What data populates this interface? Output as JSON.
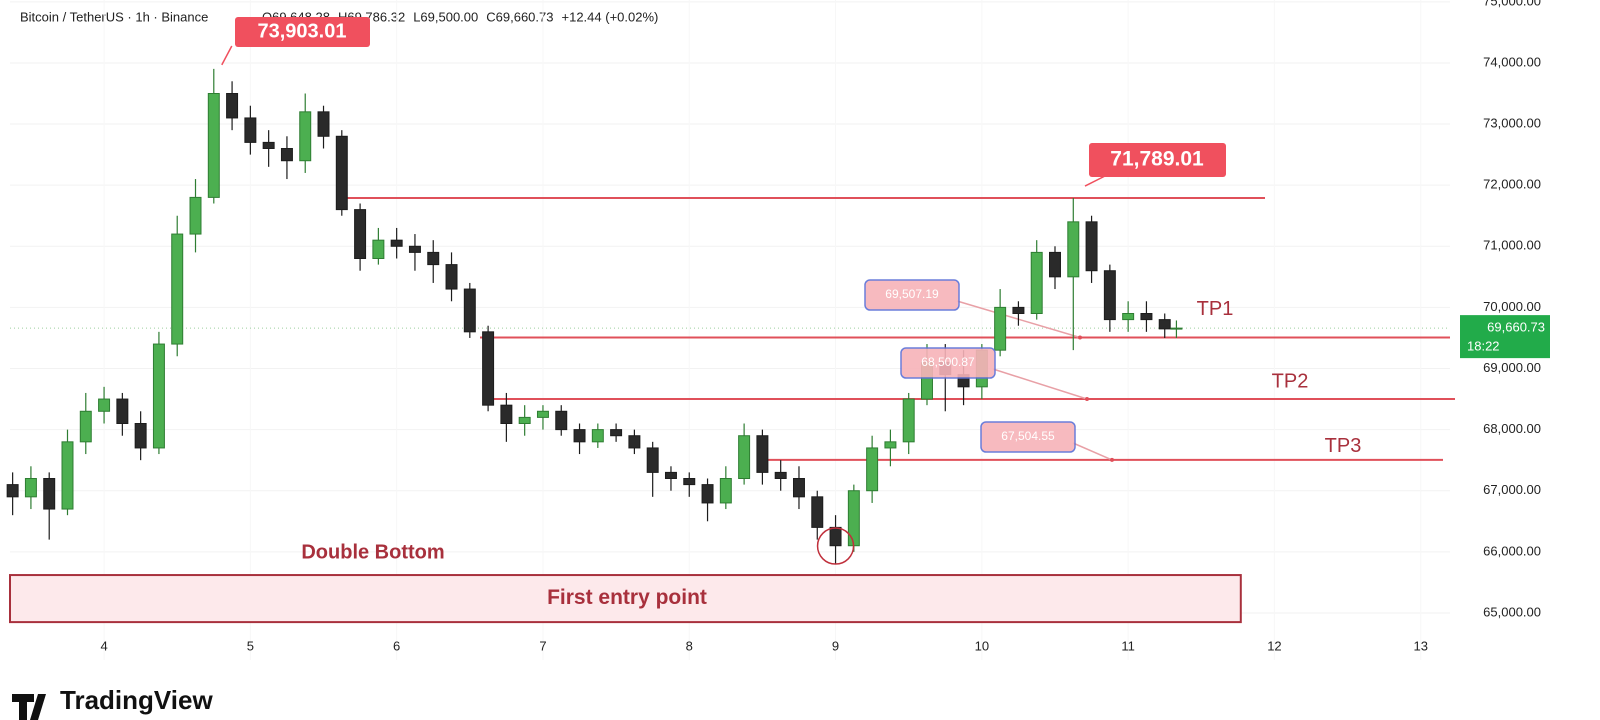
{
  "chart_data": {
    "type": "candlestick",
    "header": {
      "symbol": "Bitcoin / TetherUS · 1h · Binance",
      "ohlc": [
        "O69,648.28",
        "H69,786.32",
        "L69,500.00",
        "C69,660.73",
        "+12.44 (+0.02%)"
      ]
    },
    "x": [
      3.375,
      3.5,
      3.625,
      3.75,
      3.875,
      4.0,
      4.125,
      4.25,
      4.375,
      4.5,
      4.625,
      4.75,
      4.875,
      5.0,
      5.125,
      5.25,
      5.375,
      5.5,
      5.625,
      5.75,
      5.875,
      6.0,
      6.125,
      6.25,
      6.375,
      6.5,
      6.625,
      6.75,
      6.875,
      7.0,
      7.125,
      7.25,
      7.375,
      7.5,
      7.625,
      7.75,
      7.875,
      8.0,
      8.125,
      8.25,
      8.375,
      8.5,
      8.625,
      8.75,
      8.875,
      9.0,
      9.125,
      9.25,
      9.375,
      9.5,
      9.625,
      9.75,
      9.875,
      10.0,
      10.125,
      10.25,
      10.375,
      10.5,
      10.625,
      10.75,
      10.875,
      11.0,
      11.125,
      11.25,
      11.33
    ],
    "open": [
      67100,
      66900,
      67200,
      66700,
      67800,
      68300,
      68500,
      68100,
      67700,
      69400,
      71200,
      71800,
      73500,
      73100,
      72700,
      72600,
      72400,
      73200,
      72800,
      71600,
      70800,
      71100,
      71000,
      70900,
      70700,
      70300,
      69600,
      68400,
      68100,
      68200,
      68300,
      68000,
      67800,
      68000,
      67900,
      67700,
      67300,
      67200,
      67100,
      66800,
      67200,
      67900,
      67300,
      67200,
      66900,
      66400,
      66100,
      67000,
      67700,
      67800,
      68500,
      69100,
      68900,
      68700,
      69300,
      70000,
      69900,
      70900,
      70500,
      71400,
      70600,
      69800,
      69900,
      69800,
      69648.28
    ],
    "high": [
      67300,
      67400,
      67300,
      68000,
      68600,
      68700,
      68600,
      68300,
      69600,
      71500,
      72100,
      73903.01,
      73700,
      73300,
      72900,
      72800,
      73500,
      73300,
      72900,
      71700,
      71300,
      71300,
      71200,
      71100,
      70900,
      70400,
      69700,
      68600,
      68400,
      68400,
      68400,
      68100,
      68100,
      68100,
      68000,
      67800,
      67400,
      67300,
      67200,
      67400,
      68100,
      68000,
      67500,
      67400,
      67000,
      66600,
      67100,
      67900,
      68000,
      68600,
      69400,
      69400,
      69300,
      69400,
      70300,
      70100,
      71100,
      71000,
      71789.01,
      71500,
      70700,
      70100,
      70100,
      69900,
      69786.32
    ],
    "low": [
      66600,
      66700,
      66200,
      66600,
      67600,
      68100,
      67900,
      67500,
      67600,
      69200,
      70900,
      71700,
      72900,
      72500,
      72300,
      72100,
      72200,
      72600,
      71500,
      70600,
      70700,
      70800,
      70600,
      70400,
      70100,
      69500,
      68300,
      67800,
      67900,
      68000,
      67900,
      67600,
      67700,
      67800,
      67600,
      66900,
      67000,
      66900,
      66500,
      66700,
      67100,
      67100,
      67000,
      66700,
      66200,
      65800,
      66000,
      66800,
      67400,
      67600,
      68400,
      68300,
      68400,
      68500,
      69200,
      69700,
      69800,
      70300,
      69300,
      70400,
      69600,
      69600,
      69600,
      69500,
      69500
    ],
    "close": [
      66900,
      67200,
      66700,
      67800,
      68300,
      68500,
      68100,
      67700,
      69400,
      71200,
      71800,
      73500,
      73100,
      72700,
      72600,
      72400,
      73200,
      72800,
      71600,
      70800,
      71100,
      71000,
      70900,
      70700,
      70300,
      69600,
      68400,
      68100,
      68200,
      68300,
      68000,
      67800,
      68000,
      67900,
      67700,
      67300,
      67200,
      67100,
      66800,
      67200,
      67900,
      67300,
      67200,
      66900,
      66400,
      66100,
      67000,
      67700,
      67800,
      68500,
      69100,
      68900,
      68700,
      69300,
      70000,
      69900,
      70900,
      70500,
      71400,
      70600,
      69800,
      69900,
      69800,
      69648.28,
      69660.73
    ],
    "up_color": "#2e7d32",
    "down_color": "#1c1c1c",
    "xlim": [
      3.357,
      13.2
    ],
    "ylim": [
      64230,
      75030
    ],
    "xticks": [
      4,
      5,
      6,
      7,
      8,
      9,
      10,
      11,
      12,
      13
    ],
    "yticks": [
      {
        "value": 65000,
        "label": "65,000.00"
      },
      {
        "value": 66000,
        "label": "66,000.00"
      },
      {
        "value": 67000,
        "label": "67,000.00"
      },
      {
        "value": 68000,
        "label": "68,000.00"
      },
      {
        "value": 69000,
        "label": "69,000.00"
      },
      {
        "value": 70000,
        "label": "70,000.00"
      },
      {
        "value": 71000,
        "label": "71,000.00"
      },
      {
        "value": 72000,
        "label": "72,000.00"
      },
      {
        "value": 73000,
        "label": "73,000.00"
      },
      {
        "value": 74000,
        "label": "74,000.00"
      },
      {
        "value": 75000,
        "label": "75,000.00"
      }
    ],
    "grid": true,
    "peak_label": {
      "value": 73903.01,
      "label": "73,903.01"
    },
    "resistance": {
      "value": 71789.01,
      "label": "71,789.01"
    },
    "levels": [
      {
        "name": "TP1",
        "value": 69507.19,
        "label": "69,507.19"
      },
      {
        "name": "TP2",
        "value": 68500.87,
        "label": "68,500.87"
      },
      {
        "name": "TP3",
        "value": 67504.55,
        "label": "67,504.55"
      }
    ],
    "line_color": "#e0505a",
    "annotation": "Double Bottom",
    "zone": {
      "label": "First entry point",
      "range": [
        64850,
        65620
      ],
      "xrange": [
        3.357,
        11.77
      ]
    },
    "current_price": {
      "value": 69660.73,
      "label": "69,660.73",
      "countdown": "18:22"
    },
    "branding": "TradingView"
  }
}
